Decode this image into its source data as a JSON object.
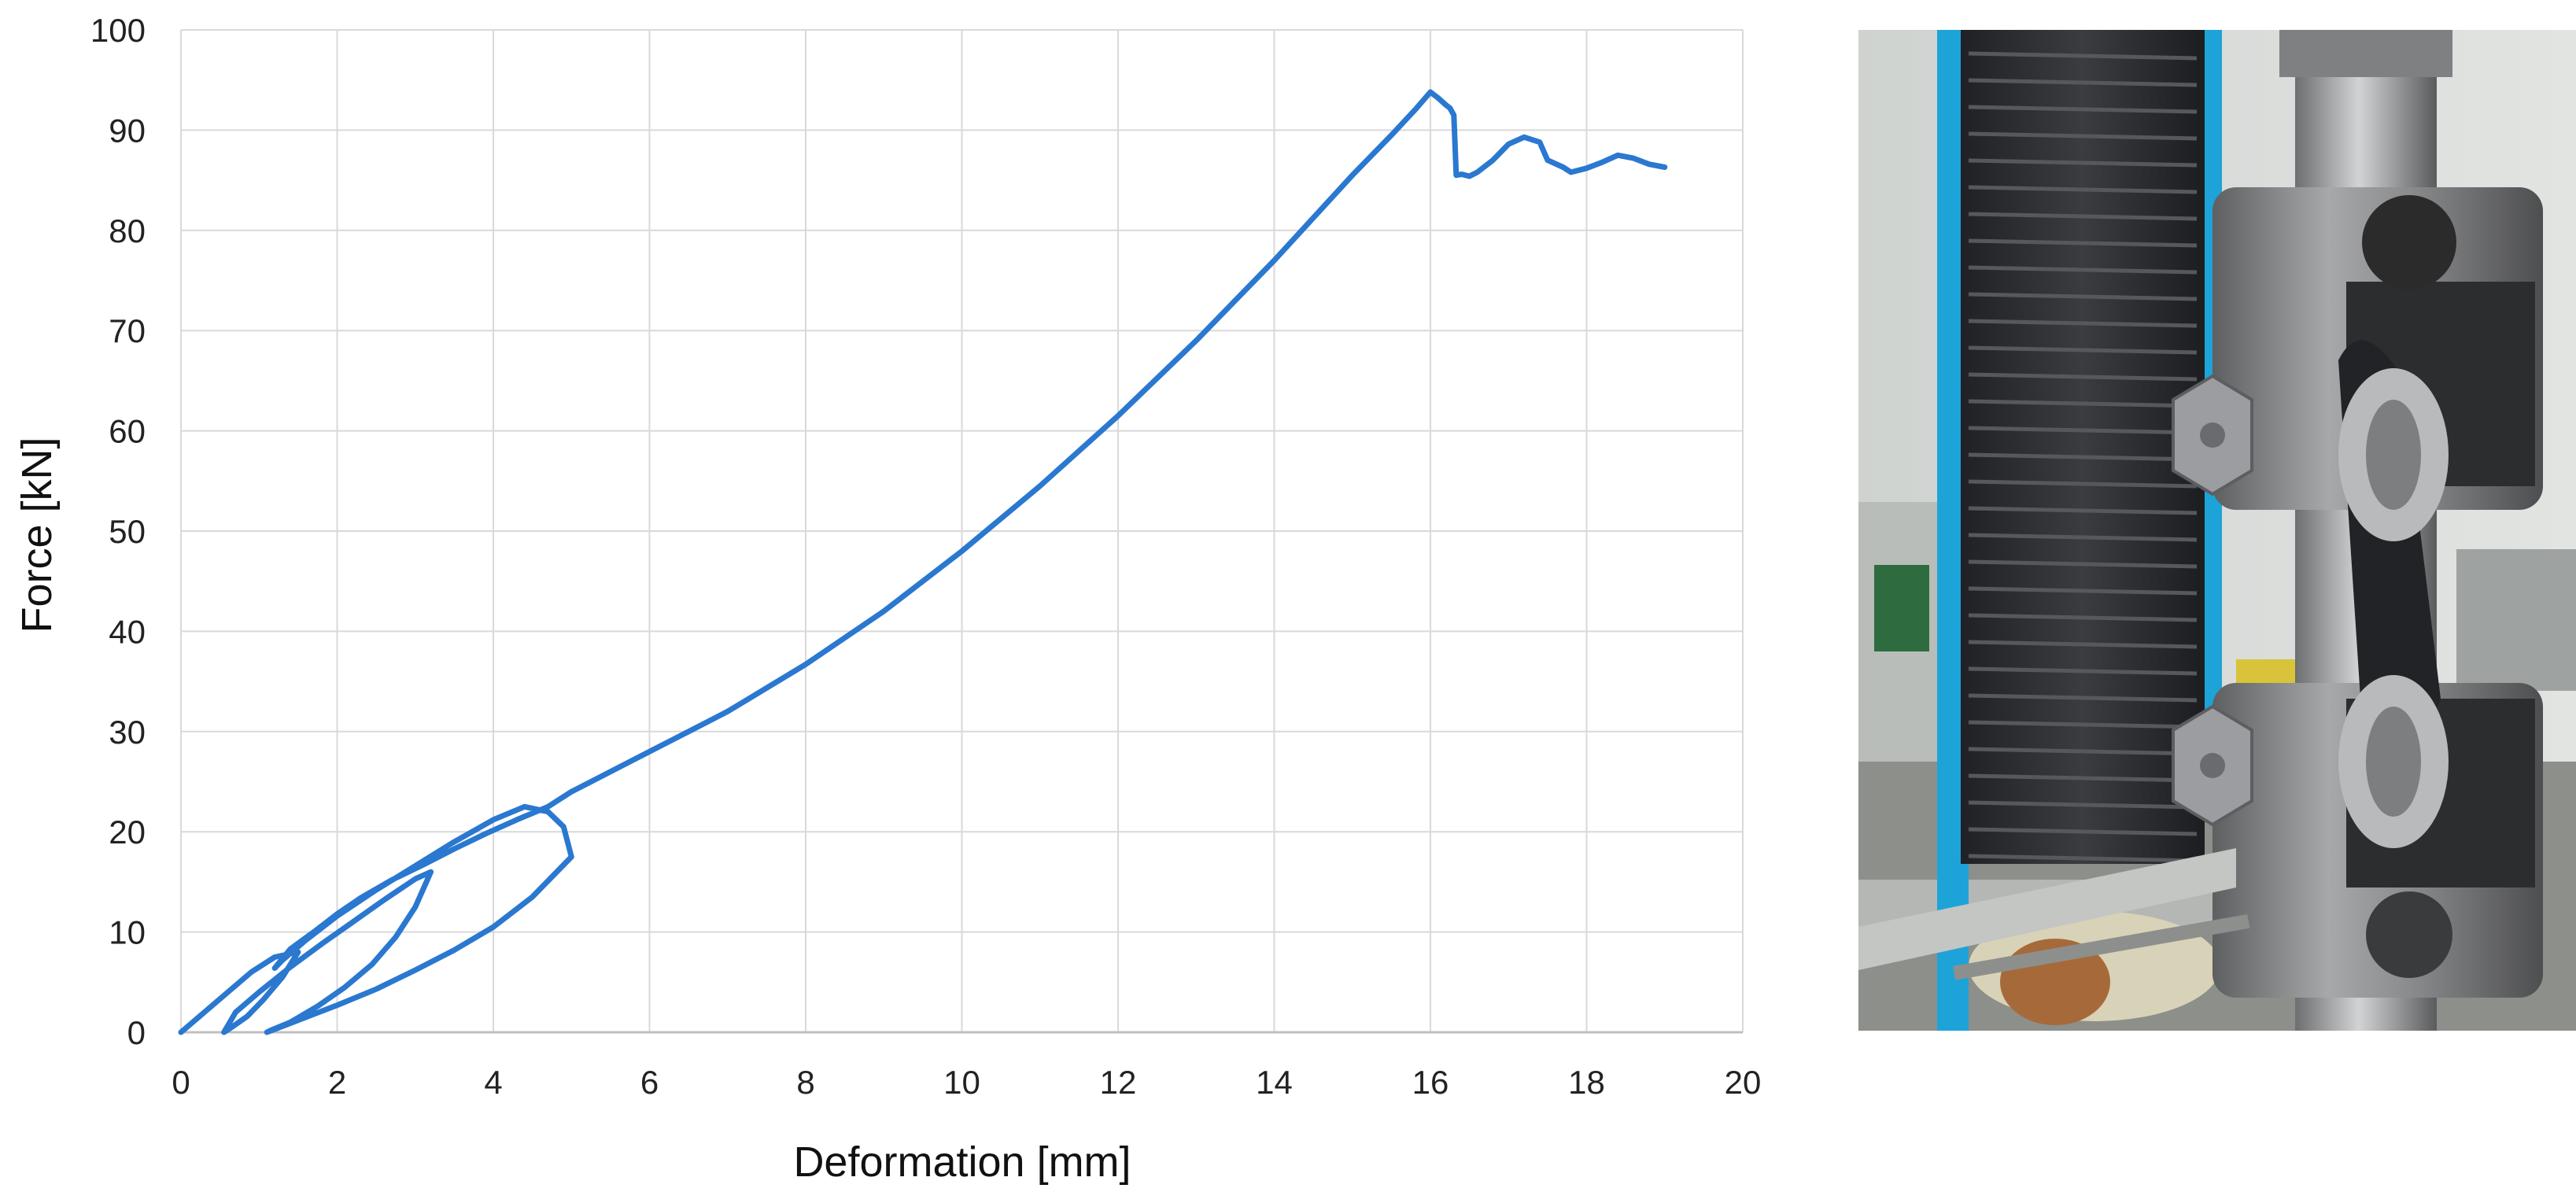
{
  "chart_data": {
    "type": "line",
    "title": "",
    "xlabel": "Deformation [mm]",
    "ylabel": "Force [kN]",
    "xlim": [
      0,
      20
    ],
    "ylim": [
      0,
      100
    ],
    "xticks": [
      "0",
      "2",
      "4",
      "6",
      "8",
      "10",
      "12",
      "14",
      "16",
      "18",
      "20"
    ],
    "yticks": [
      "0",
      "10",
      "20",
      "30",
      "40",
      "50",
      "60",
      "70",
      "80",
      "90",
      "100"
    ],
    "grid": true,
    "legend": "none",
    "line_color": "#2a78d0",
    "series": [
      {
        "x": [
          0.0,
          0.3,
          0.6,
          0.9,
          1.2,
          1.5,
          1.3,
          1.05,
          0.85,
          0.65,
          0.55,
          0.7,
          1.0,
          1.4,
          1.8,
          2.2,
          2.6,
          3.0,
          3.2,
          3.0,
          2.75,
          2.45,
          2.1,
          1.75,
          1.4,
          1.15,
          1.1,
          1.5,
          2.0,
          2.5,
          3.0,
          3.5,
          4.0,
          4.5,
          5.0,
          4.9,
          4.7,
          4.4,
          4.0,
          3.5,
          3.0,
          2.5,
          2.0,
          1.6,
          1.3,
          1.2,
          1.4,
          1.7,
          2.0,
          2.3,
          2.7,
          3.1,
          3.5,
          3.9,
          4.3,
          4.7,
          5.0,
          5.5,
          6.0,
          7.0,
          8.0,
          9.0,
          10.0,
          11.0,
          12.0,
          13.0,
          14.0,
          15.0,
          15.5,
          15.8,
          16.0,
          16.1,
          16.2,
          16.25,
          16.3,
          16.33,
          16.4,
          16.5,
          16.6,
          16.8,
          17.0,
          17.2,
          17.4,
          17.5,
          17.7,
          17.8,
          18.0,
          18.2,
          18.4,
          18.6,
          18.8,
          19.0
        ],
        "y": [
          0.0,
          2.0,
          4.0,
          6.0,
          7.5,
          8.0,
          5.5,
          3.2,
          1.6,
          0.5,
          0.0,
          2.0,
          4.0,
          6.5,
          8.8,
          11.0,
          13.2,
          15.3,
          16.0,
          12.5,
          9.5,
          6.8,
          4.5,
          2.6,
          1.0,
          0.2,
          0.0,
          1.2,
          2.7,
          4.3,
          6.2,
          8.2,
          10.5,
          13.5,
          17.5,
          20.5,
          22.0,
          22.5,
          21.2,
          19.0,
          16.6,
          14.2,
          11.6,
          9.2,
          7.2,
          6.4,
          8.3,
          10.0,
          11.8,
          13.4,
          15.2,
          16.7,
          18.3,
          19.8,
          21.2,
          22.5,
          24.0,
          26.0,
          28.0,
          32.0,
          36.7,
          42.0,
          48.0,
          54.5,
          61.5,
          69.0,
          77.0,
          85.5,
          89.5,
          92.0,
          93.8,
          93.2,
          92.5,
          92.2,
          91.5,
          85.5,
          85.6,
          85.4,
          85.8,
          87.0,
          88.6,
          89.3,
          88.8,
          87.0,
          86.3,
          85.8,
          86.2,
          86.8,
          87.5,
          87.2,
          86.6,
          86.3
        ]
      }
    ]
  },
  "photo": {
    "description_icon": "tensile-test-photo-icon"
  }
}
